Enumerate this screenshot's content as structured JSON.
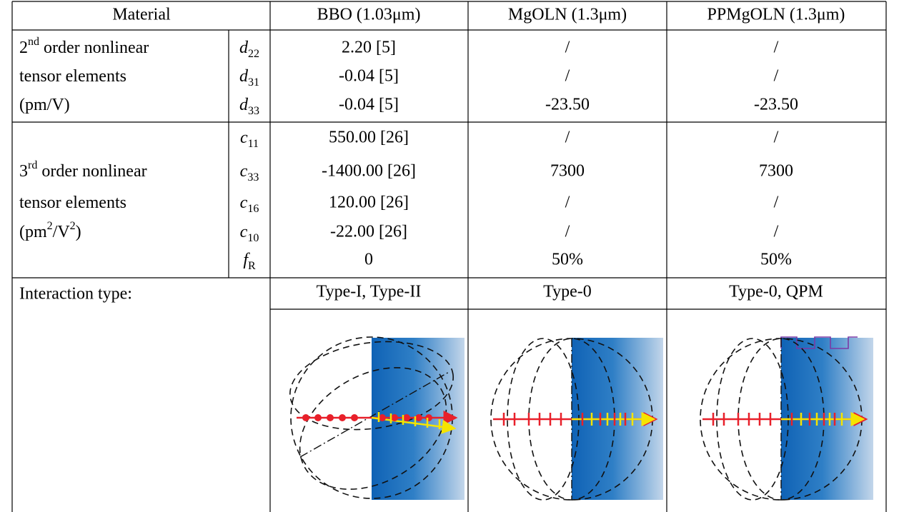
{
  "table": {
    "header": [
      "Material",
      "BBO (1.03μm)",
      "MgOLN (1.3μm)",
      "PPMgOLN (1.3μm)"
    ],
    "groups": [
      {
        "label": [
          [
            {
              "text": "2"
            },
            {
              "sup": "nd"
            },
            {
              "text": " order nonlinear"
            }
          ],
          [
            {
              "text": "tensor elements"
            }
          ],
          [
            {
              "text": "(pm/V)"
            }
          ]
        ],
        "rows": [
          {
            "symbol": [
              {
                "text": "d"
              },
              {
                "sub": "22"
              }
            ],
            "cells": [
              "2.20 [5]",
              "/",
              "/"
            ]
          },
          {
            "symbol": [
              {
                "text": "d"
              },
              {
                "sub": "31"
              }
            ],
            "cells": [
              "-0.04 [5]",
              "/",
              "/"
            ]
          },
          {
            "symbol": [
              {
                "text": "d"
              },
              {
                "sub": "33"
              }
            ],
            "cells": [
              "-0.04 [5]",
              "-23.50",
              "-23.50"
            ]
          }
        ]
      },
      {
        "label": [
          [
            {
              "text": "3"
            },
            {
              "sup": "rd"
            },
            {
              "text": " order nonlinear"
            }
          ],
          [
            {
              "text": "tensor elements"
            }
          ],
          [
            {
              "text": "(pm"
            },
            {
              "sup": "2"
            },
            {
              "text": "/V"
            },
            {
              "sup": "2"
            },
            {
              "text": ")"
            }
          ]
        ],
        "rows": [
          {
            "symbol": [
              {
                "text": "c"
              },
              {
                "sub": "11"
              }
            ],
            "cells": [
              "550.00 [26]",
              "/",
              "/"
            ]
          },
          {
            "symbol": [
              {
                "text": "c"
              },
              {
                "sub": "33"
              }
            ],
            "cells": [
              "-1400.00 [26]",
              "7300",
              "7300"
            ]
          },
          {
            "symbol": [
              {
                "text": "c"
              },
              {
                "sub": "16"
              }
            ],
            "cells": [
              "120.00 [26]",
              "/",
              "/"
            ]
          },
          {
            "symbol": [
              {
                "text": "c"
              },
              {
                "sub": "10"
              }
            ],
            "cells": [
              "-22.00 [26]",
              "/",
              "/"
            ]
          },
          {
            "symbol": [
              {
                "text": "f"
              },
              {
                "sub": "R"
              }
            ],
            "cells": [
              "0",
              "50%",
              "50%"
            ]
          }
        ]
      }
    ],
    "interaction": {
      "label": "Interaction type:",
      "cells": [
        "Type-I, Type-II",
        "Type-0",
        "Type-0, QPM"
      ]
    }
  }
}
